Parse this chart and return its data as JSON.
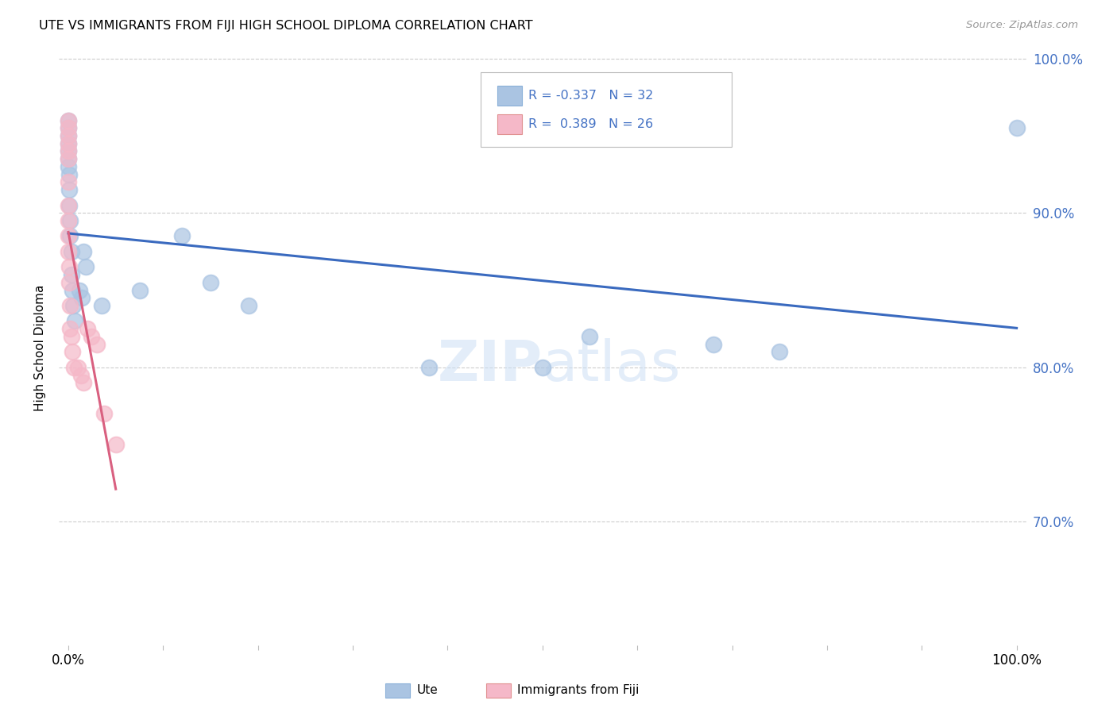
{
  "title": "UTE VS IMMIGRANTS FROM FIJI HIGH SCHOOL DIPLOMA CORRELATION CHART",
  "source": "Source: ZipAtlas.com",
  "ylabel": "High School Diploma",
  "legend_ute": "Ute",
  "legend_fiji": "Immigrants from Fiji",
  "ute_color": "#aac4e2",
  "fiji_color": "#f5b8c8",
  "ute_line_color": "#3a6abf",
  "fiji_line_color": "#d96080",
  "right_axis_color": "#4472c4",
  "watermark_color": "#ccdff5",
  "ute_x": [
    0.0,
    0.0,
    0.0,
    0.0,
    0.0,
    0.0,
    0.0,
    0.001,
    0.001,
    0.001,
    0.002,
    0.002,
    0.003,
    0.003,
    0.004,
    0.005,
    0.007,
    0.012,
    0.014,
    0.016,
    0.018,
    0.035,
    0.075,
    0.12,
    0.15,
    0.19,
    0.38,
    0.5,
    0.55,
    0.68,
    0.75,
    1.0
  ],
  "ute_y": [
    0.96,
    0.955,
    0.95,
    0.945,
    0.94,
    0.935,
    0.93,
    0.925,
    0.915,
    0.905,
    0.895,
    0.885,
    0.875,
    0.86,
    0.85,
    0.84,
    0.83,
    0.85,
    0.845,
    0.875,
    0.865,
    0.84,
    0.85,
    0.885,
    0.855,
    0.84,
    0.8,
    0.8,
    0.82,
    0.815,
    0.81,
    0.955
  ],
  "fiji_x": [
    0.0,
    0.0,
    0.0,
    0.0,
    0.0,
    0.0,
    0.0,
    0.0,
    0.0,
    0.0,
    0.0,
    0.001,
    0.001,
    0.002,
    0.002,
    0.003,
    0.004,
    0.006,
    0.01,
    0.013,
    0.016,
    0.02,
    0.024,
    0.03,
    0.038,
    0.05
  ],
  "fiji_y": [
    0.96,
    0.955,
    0.95,
    0.945,
    0.94,
    0.935,
    0.92,
    0.905,
    0.895,
    0.885,
    0.875,
    0.865,
    0.855,
    0.84,
    0.825,
    0.82,
    0.81,
    0.8,
    0.8,
    0.795,
    0.79,
    0.825,
    0.82,
    0.815,
    0.77,
    0.75
  ],
  "ylim": [
    0.62,
    1.005
  ],
  "xlim": [
    -0.01,
    1.01
  ],
  "yticks": [
    0.7,
    0.8,
    0.9,
    1.0
  ],
  "ytick_labels": [
    "70.0%",
    "80.0%",
    "90.0%",
    "100.0%"
  ],
  "xtick_positions": [
    0.0,
    0.1,
    0.2,
    0.3,
    0.4,
    0.5,
    0.6,
    0.7,
    0.8,
    0.9,
    1.0
  ],
  "xtick_labels": [
    "0.0%",
    "",
    "",
    "",
    "",
    "",
    "",
    "",
    "",
    "",
    "100.0%"
  ],
  "background_color": "#ffffff",
  "grid_color": "#cccccc"
}
